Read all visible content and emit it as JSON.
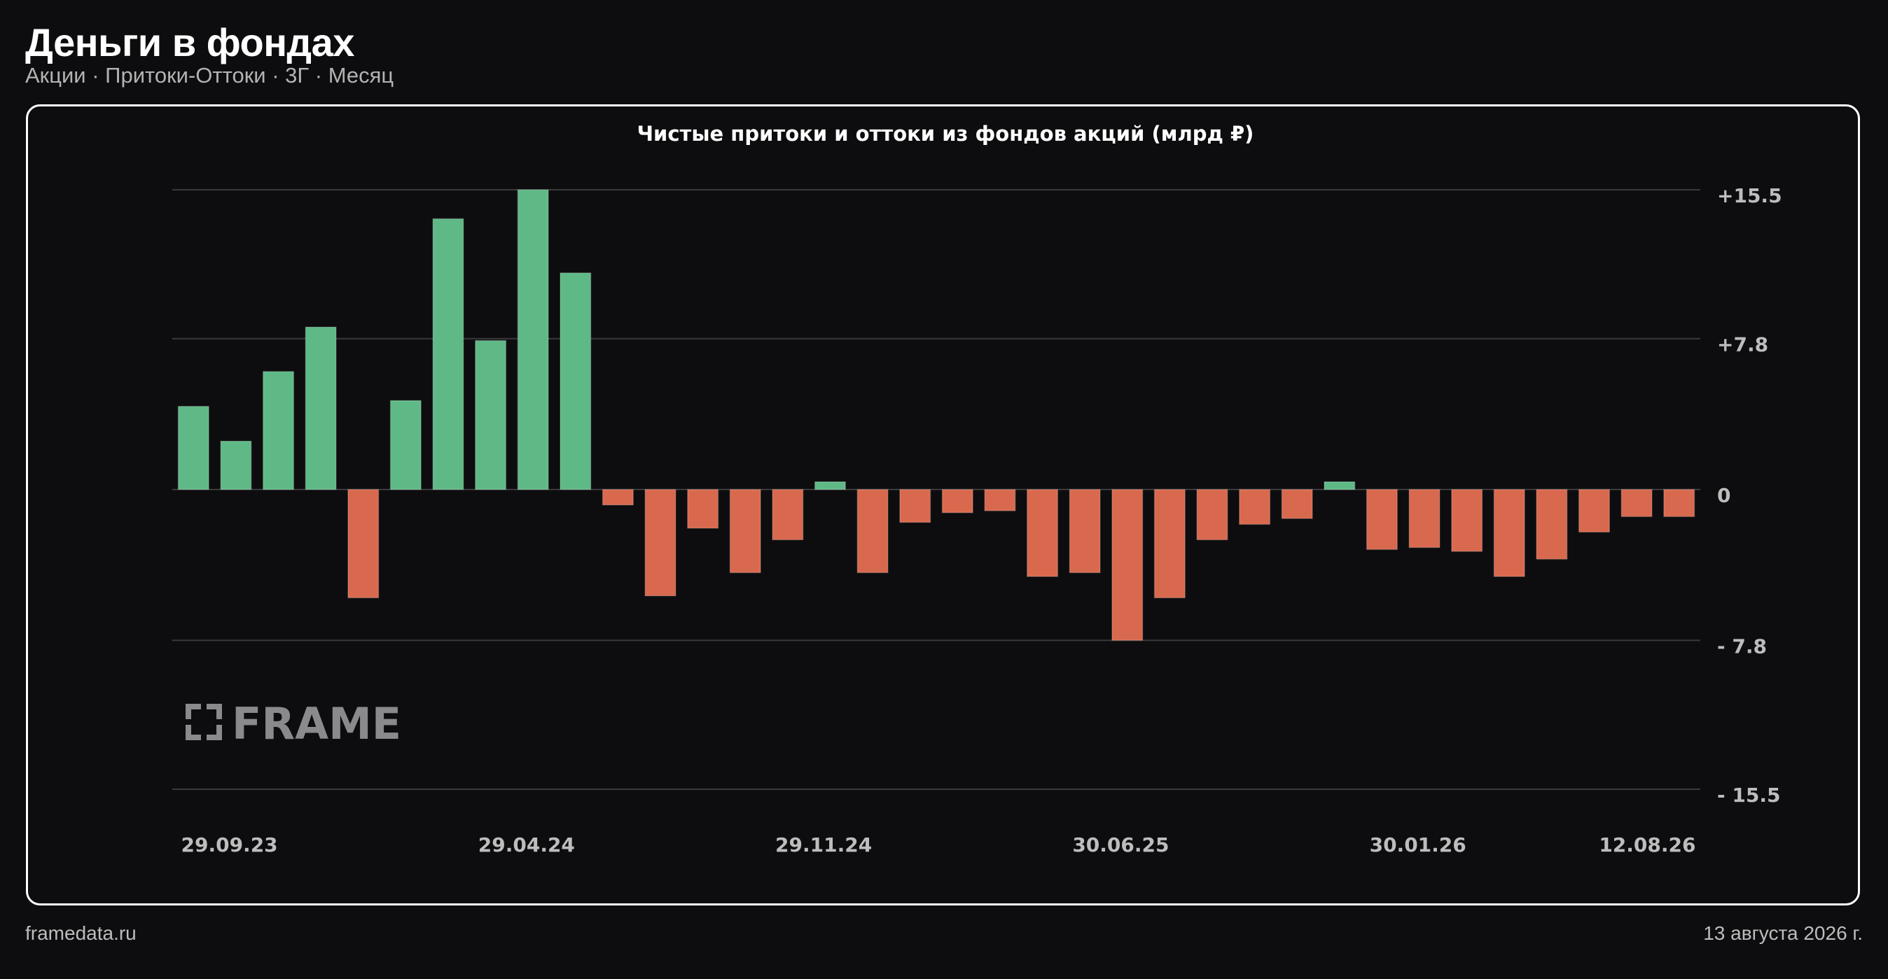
{
  "header": {
    "title": "Деньги в фондах",
    "subtitle": "Акции · Притоки-Оттоки · 3Г · Месяц"
  },
  "footer": {
    "source": "framedata.ru",
    "date": "13 августа 2026 г."
  },
  "watermark": {
    "text": "FRAME"
  },
  "colors": {
    "background": "#0d0d0f",
    "positive": "#5fb986",
    "negative": "#d9694e",
    "grid": "#3a3a3d",
    "tick_text": "#bdbdbd",
    "frame_border": "#ffffff"
  },
  "chart_data": {
    "type": "bar",
    "title": "Чистые притоки и оттоки из фондов акций (млрд ₽)",
    "xlabel": "",
    "ylabel": "",
    "ylim": [
      -15.5,
      15.5
    ],
    "y_ticks": [
      15.5,
      7.8,
      0,
      -7.8,
      -15.5
    ],
    "y_tick_labels": [
      "+15.5",
      "+7.8",
      "0",
      "- 7.8",
      "- 15.5"
    ],
    "y_axis_position": "right",
    "grid": true,
    "x_tick_labels": [
      {
        "label": "29.09.23",
        "index": 0
      },
      {
        "label": "29.04.24",
        "index": 7
      },
      {
        "label": "29.11.24",
        "index": 14
      },
      {
        "label": "30.06.25",
        "index": 21
      },
      {
        "label": "30.01.26",
        "index": 28
      },
      {
        "label": "12.08.26",
        "index": 35
      }
    ],
    "values": [
      4.3,
      2.5,
      6.1,
      8.4,
      -5.6,
      4.6,
      14.0,
      7.7,
      15.5,
      11.2,
      -0.8,
      -5.5,
      -2.0,
      -4.3,
      -2.6,
      0.4,
      -4.3,
      -1.7,
      -1.2,
      -1.1,
      -4.5,
      -4.3,
      -7.8,
      -5.6,
      -2.6,
      -1.8,
      -1.5,
      0.4,
      -3.1,
      -3.0,
      -3.2,
      -4.5,
      -3.6,
      -2.2,
      -1.4,
      -1.4
    ]
  }
}
